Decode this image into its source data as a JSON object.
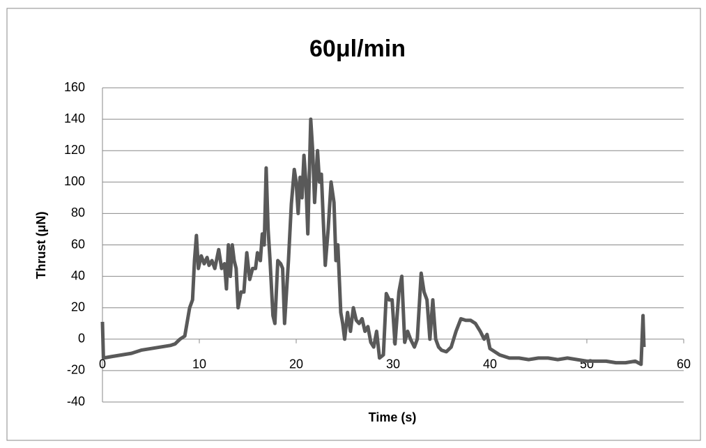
{
  "chart_data": {
    "type": "line",
    "title": "60μl/min",
    "x_label": "Time (s)",
    "y_label": "Thrust (μN)",
    "xlim": [
      0,
      60
    ],
    "xticks": [
      0,
      10,
      20,
      30,
      40,
      50,
      60
    ],
    "ylim": [
      -40,
      160
    ],
    "yticks": [
      -40,
      -20,
      0,
      20,
      40,
      60,
      80,
      100,
      120,
      140,
      160
    ],
    "grid": true,
    "series": [
      {
        "name": "Thrust",
        "color": "#595959",
        "x": [
          0,
          0.1,
          1,
          2,
          3,
          4,
          5,
          6,
          7,
          7.5,
          8,
          8.5,
          9,
          9.3,
          9.5,
          9.7,
          9.9,
          10.2,
          10.5,
          10.8,
          11,
          11.3,
          11.6,
          12,
          12.3,
          12.6,
          12.8,
          13,
          13.2,
          13.4,
          13.6,
          13.8,
          14,
          14.3,
          14.6,
          14.9,
          15.2,
          15.5,
          15.8,
          16,
          16.3,
          16.5,
          16.7,
          16.9,
          17.1,
          17.3,
          17.6,
          17.8,
          18.1,
          18.4,
          18.6,
          18.8,
          19.2,
          19.5,
          19.8,
          20,
          20.2,
          20.4,
          20.6,
          20.8,
          21,
          21.2,
          21.5,
          21.7,
          21.9,
          22.2,
          22.4,
          22.6,
          22.8,
          23,
          23.3,
          23.6,
          23.9,
          24.1,
          24.3,
          24.6,
          24.8,
          25,
          25.3,
          25.6,
          25.9,
          26.2,
          26.5,
          26.8,
          27.1,
          27.4,
          27.7,
          28,
          28.3,
          28.6,
          29,
          29.3,
          29.6,
          29.9,
          30.2,
          30.6,
          30.9,
          31.2,
          31.5,
          31.8,
          32.2,
          32.5,
          32.9,
          33.2,
          33.5,
          33.8,
          34.1,
          34.4,
          34.7,
          35,
          35.5,
          36,
          36.5,
          37,
          37.5,
          38,
          38.5,
          39,
          39.4,
          39.7,
          40,
          41,
          42,
          43,
          44,
          45,
          46,
          47,
          48,
          49,
          50,
          51,
          52,
          53,
          54,
          55,
          55.6,
          55.8,
          55.9
        ],
        "values": [
          11,
          -12,
          -11,
          -10,
          -9,
          -7,
          -6,
          -5,
          -4,
          -3,
          0,
          2,
          20,
          25,
          50,
          66,
          45,
          53,
          48,
          52,
          47,
          50,
          45,
          57,
          45,
          48,
          32,
          60,
          40,
          60,
          50,
          45,
          20,
          30,
          30,
          55,
          38,
          45,
          45,
          55,
          50,
          67,
          60,
          109,
          70,
          50,
          15,
          10,
          50,
          48,
          45,
          10,
          50,
          86,
          108,
          100,
          80,
          103,
          90,
          117,
          100,
          67,
          140,
          120,
          87,
          120,
          100,
          105,
          75,
          47,
          70,
          100,
          87,
          50,
          60,
          17,
          10,
          0,
          17,
          5,
          20,
          12,
          10,
          13,
          5,
          8,
          -2,
          -5,
          5,
          -12,
          -10,
          29,
          25,
          25,
          -3,
          30,
          40,
          -2,
          5,
          0,
          -5,
          0,
          42,
          30,
          25,
          0,
          25,
          0,
          -5,
          -7,
          -8,
          -5,
          5,
          13,
          12,
          12,
          10,
          5,
          0,
          3,
          -6,
          -10,
          -12,
          -12,
          -13,
          -12,
          -12,
          -13,
          -12,
          -13,
          -14,
          -14,
          -14,
          -15,
          -15,
          -14,
          -16,
          15,
          -5
        ]
      }
    ]
  }
}
